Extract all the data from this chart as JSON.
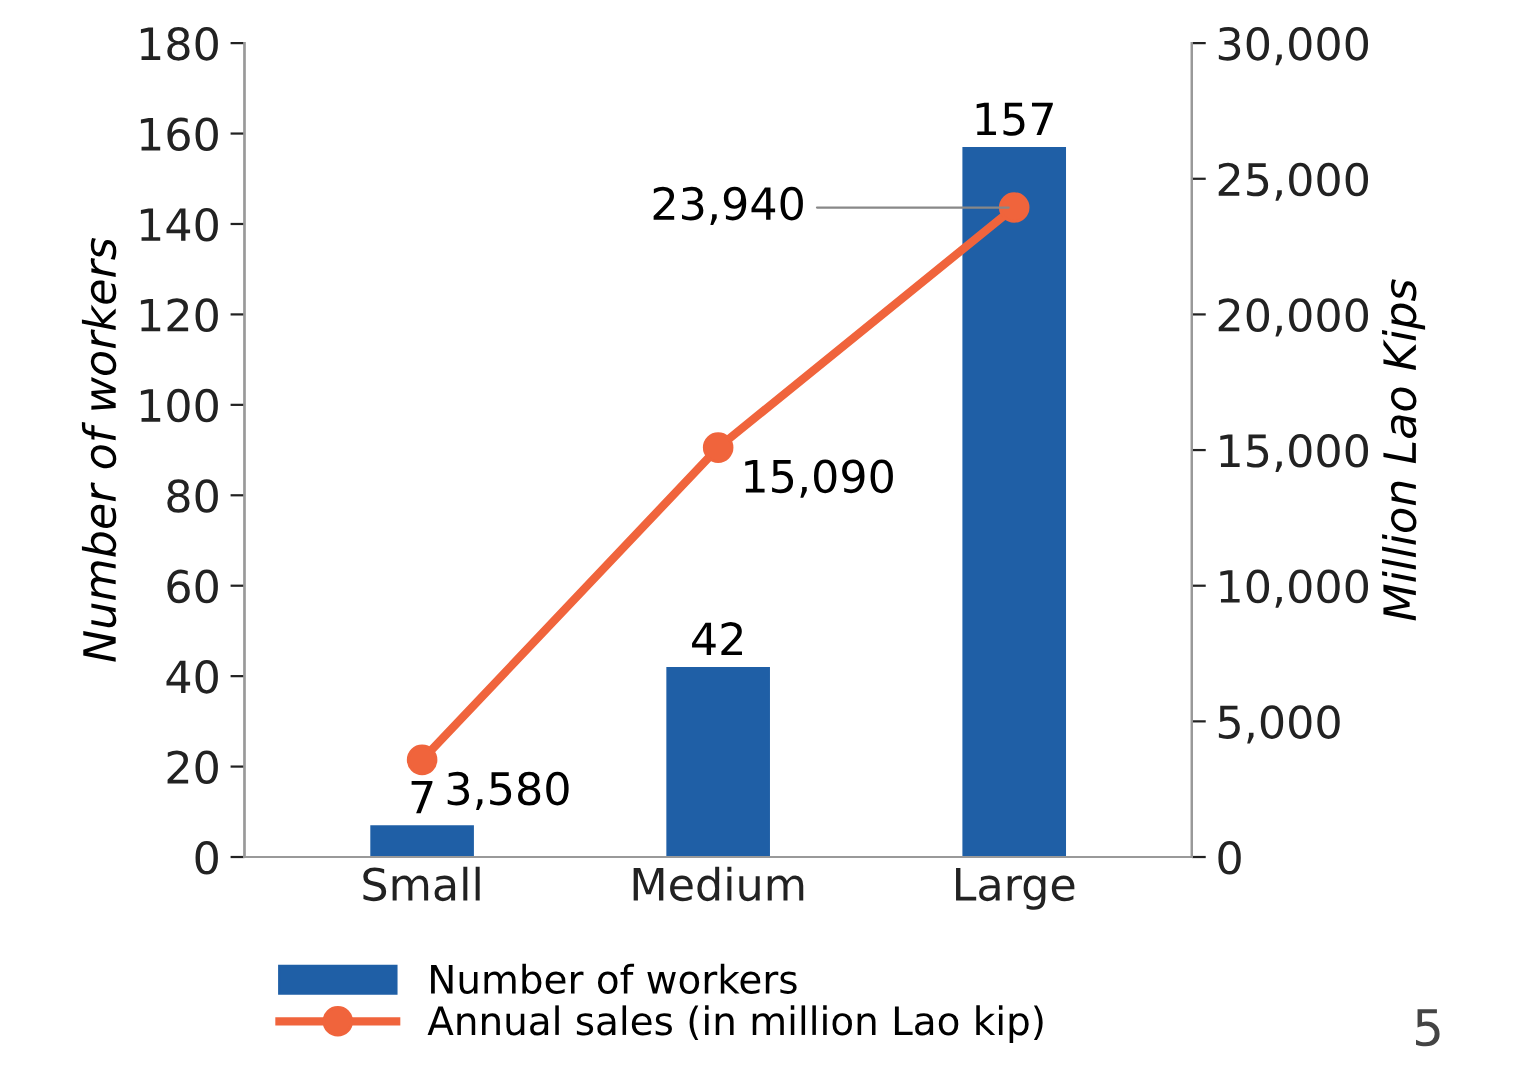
{
  "chart_data": {
    "type": "bar",
    "ylabel": "Number of workers",
    "y2label": "Million Lao Kips",
    "categories": [
      "Small",
      "Medium",
      "Large"
    ],
    "series": [
      {
        "name": "Number of workers",
        "color": "#1f5fa6",
        "values": [
          7,
          42,
          157
        ],
        "value_labels": [
          "7",
          "42",
          "157"
        ]
      },
      {
        "name": "Annual sales (in million Lao kip)",
        "type": "line",
        "axis": "y2",
        "color": "#f0643c",
        "marker": "circle",
        "line_style": "solid",
        "values": [
          3580,
          15090,
          23940
        ],
        "value_labels": [
          "3,580",
          "15,090",
          "23,940"
        ]
      }
    ],
    "ylim": [
      0,
      180
    ],
    "yticks": [
      0,
      20,
      40,
      60,
      80,
      100,
      120,
      140,
      160,
      180
    ],
    "y2lim": [
      0,
      30000
    ],
    "y2ticks": [
      0,
      {
        "value": 5000,
        "label": "5,000"
      },
      {
        "value": 10000,
        "label": "10,000"
      },
      {
        "value": 15000,
        "label": "15,000"
      },
      {
        "value": 20000,
        "label": "20,000"
      },
      {
        "value": 25000,
        "label": "25,000"
      },
      {
        "value": 30000,
        "label": "30,000"
      }
    ],
    "grid": false,
    "legend": "bottom",
    "annotations": [
      "5"
    ]
  }
}
